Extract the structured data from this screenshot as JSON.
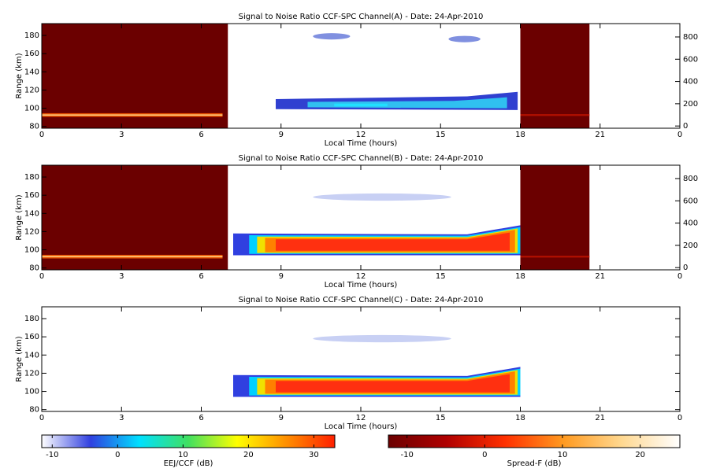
{
  "chart_data": [
    {
      "type": "heatmap",
      "title": "Signal to Noise Ratio CCF-SPC Channel(A) - Date: 24-Apr-2010",
      "x_label": "Local Time (hours)",
      "y_label": "Range (km)",
      "xlim": [
        0,
        24
      ],
      "xticks": [
        0,
        3,
        6,
        9,
        12,
        15,
        18,
        21,
        {
          "value": 24,
          "label": "0"
        }
      ],
      "ylim": [
        78,
        193
      ],
      "yticks": [
        80,
        100,
        120,
        140,
        160,
        180
      ],
      "y2lim": [
        -20,
        920
      ],
      "y2ticks": [
        0,
        200,
        400,
        600,
        800
      ]
    },
    {
      "type": "heatmap",
      "title": "Signal to Noise Ratio CCF-SPC Channel(B) - Date: 24-Apr-2010",
      "x_label": "Local Time (hours)",
      "y_label": "Range (km)",
      "xlim": [
        0,
        24
      ],
      "xticks": [
        0,
        3,
        6,
        9,
        12,
        15,
        18,
        21,
        {
          "value": 24,
          "label": "0"
        }
      ],
      "ylim": [
        78,
        193
      ],
      "yticks": [
        80,
        100,
        120,
        140,
        160,
        180
      ],
      "y2lim": [
        -20,
        920
      ],
      "y2ticks": [
        0,
        200,
        400,
        600,
        800
      ]
    },
    {
      "type": "heatmap",
      "title": "Signal to Noise Ratio CCF-SPC Channel(C) - Date: 24-Apr-2010",
      "x_label": "Local Time (hours)",
      "y_label": "Range (km)",
      "xlim": [
        0,
        24
      ],
      "xticks": [
        0,
        3,
        6,
        9,
        12,
        15,
        18,
        21,
        {
          "value": 24,
          "label": "0"
        }
      ],
      "ylim": [
        78,
        193
      ],
      "yticks": [
        80,
        100,
        120,
        140,
        160,
        180
      ]
    },
    {
      "type": "colorbar",
      "label": "EEJ/CCF (dB)",
      "lim": [
        -11.6,
        33.2
      ],
      "ticks": [
        -10,
        0,
        10,
        20,
        30
      ],
      "colors": [
        "#ffffff",
        "#3040e0",
        "#00e0ff",
        "#40e060",
        "#ffff00",
        "#ff9000",
        "#ff2000"
      ]
    },
    {
      "type": "colorbar",
      "label": "Spread-F (dB)",
      "lim": [
        -12.4,
        25.1
      ],
      "ticks": [
        -10,
        0,
        10,
        20
      ],
      "colors": [
        "#6b0000",
        "#b00000",
        "#ff3000",
        "#ff9a20",
        "#ffd890",
        "#ffffff"
      ]
    }
  ]
}
